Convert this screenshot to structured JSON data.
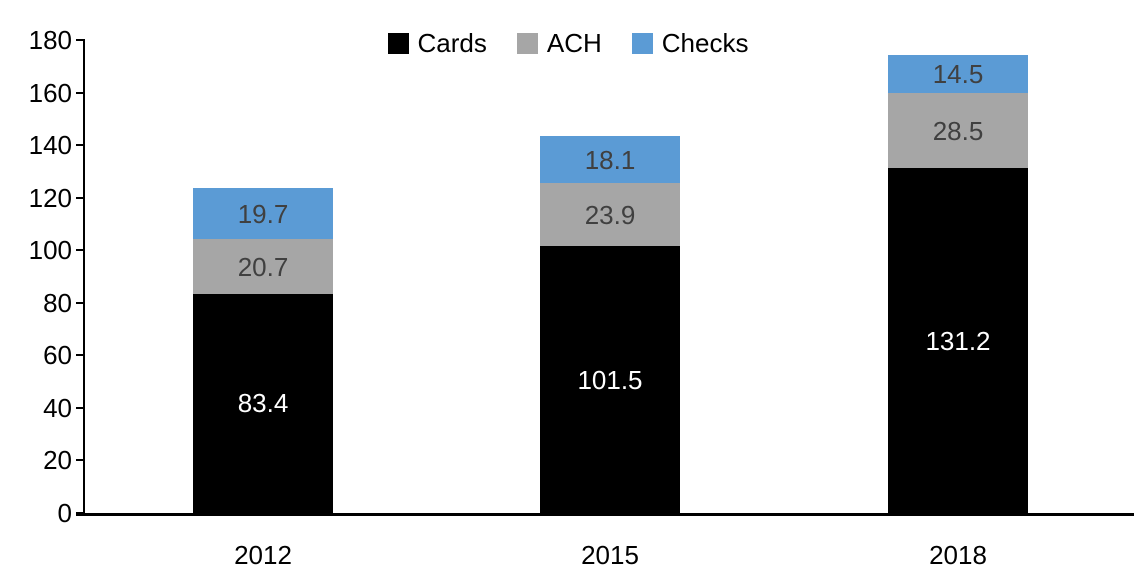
{
  "chart_data": {
    "type": "bar",
    "stacked": true,
    "title": "",
    "xlabel": "",
    "ylabel": "",
    "categories": [
      "2012",
      "2015",
      "2018"
    ],
    "series": [
      {
        "name": "Cards",
        "color": "#000000",
        "label_color": "#FFFFFF",
        "values": [
          83.4,
          101.5,
          131.2
        ]
      },
      {
        "name": "ACH",
        "color": "#A6A6A6",
        "label_color": "#404040",
        "values": [
          20.7,
          23.9,
          28.5
        ]
      },
      {
        "name": "Checks",
        "color": "#5B9BD5",
        "label_color": "#404040",
        "values": [
          19.7,
          18.1,
          14.5
        ]
      }
    ],
    "totals": [
      123.8,
      143.5,
      174.2
    ],
    "ylim": [
      0,
      180
    ],
    "yticks": [
      0,
      20,
      40,
      60,
      80,
      100,
      120,
      140,
      160,
      180
    ],
    "legend_position": "top",
    "legend_labels": [
      "Cards",
      "ACH",
      "Checks"
    ],
    "grid": false,
    "axis_color": "#000000",
    "tick_label_color": "#000000"
  }
}
